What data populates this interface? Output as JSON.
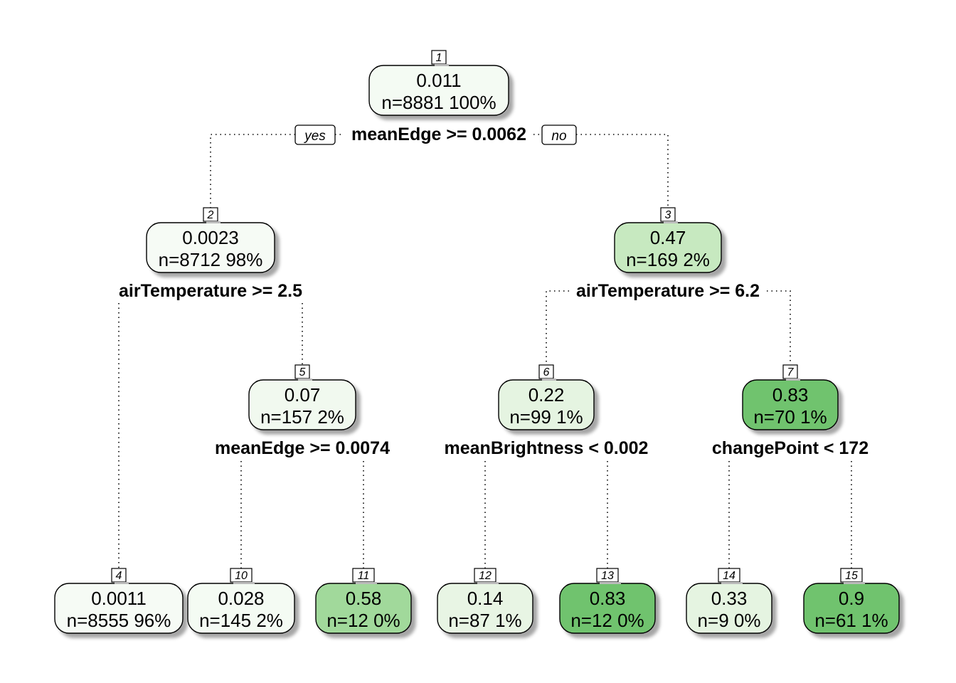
{
  "tree": {
    "yes_label": "yes",
    "no_label": "no",
    "nodes": [
      {
        "id": "1",
        "value": "0.011",
        "count": "n=8881  100%",
        "fill": "#f4fbf3"
      },
      {
        "id": "2",
        "value": "0.0023",
        "count": "n=8712  98%",
        "fill": "#f6fbf5"
      },
      {
        "id": "3",
        "value": "0.47",
        "count": "n=169  2%",
        "fill": "#c7e9c0"
      },
      {
        "id": "4",
        "value": "0.0011",
        "count": "n=8555  96%",
        "fill": "#f6fbf5"
      },
      {
        "id": "5",
        "value": "0.07",
        "count": "n=157  2%",
        "fill": "#f1f9ef"
      },
      {
        "id": "6",
        "value": "0.22",
        "count": "n=99  1%",
        "fill": "#e5f4e1"
      },
      {
        "id": "7",
        "value": "0.83",
        "count": "n=70  1%",
        "fill": "#70c36e"
      },
      {
        "id": "10",
        "value": "0.028",
        "count": "n=145  2%",
        "fill": "#f4fbf3"
      },
      {
        "id": "11",
        "value": "0.58",
        "count": "n=12  0%",
        "fill": "#a1d99b"
      },
      {
        "id": "12",
        "value": "0.14",
        "count": "n=87  1%",
        "fill": "#e8f5e4"
      },
      {
        "id": "13",
        "value": "0.83",
        "count": "n=12  0%",
        "fill": "#70c36e"
      },
      {
        "id": "14",
        "value": "0.33",
        "count": "n=9  0%",
        "fill": "#e5f4e1"
      },
      {
        "id": "15",
        "value": "0.9",
        "count": "n=61  1%",
        "fill": "#70c36e"
      }
    ],
    "splits": [
      {
        "node": "1",
        "label": "meanEdge >= 0.0062"
      },
      {
        "node": "2",
        "label": "airTemperature >= 2.5"
      },
      {
        "node": "3",
        "label": "airTemperature >= 6.2"
      },
      {
        "node": "5",
        "label": "meanEdge >= 0.0074"
      },
      {
        "node": "6",
        "label": "meanBrightness < 0.002"
      },
      {
        "node": "7",
        "label": "changePoint < 172"
      }
    ]
  }
}
